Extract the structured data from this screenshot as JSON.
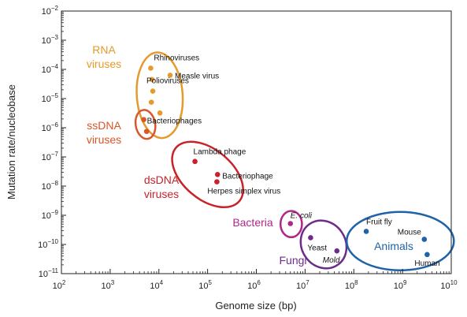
{
  "chart_data": {
    "type": "scatter",
    "title": "",
    "xlabel": "Genome size (bp)",
    "ylabel": "Mutation rate/nucleobase",
    "x_scale": "log",
    "y_scale": "log",
    "xlim": [
      100,
      10000000000
    ],
    "ylim": [
      1e-11,
      0.01
    ],
    "x_ticks": [
      {
        "base": "10",
        "exp": "2",
        "value": 100
      },
      {
        "base": "10",
        "exp": "3",
        "value": 1000
      },
      {
        "base": "10",
        "exp": "4",
        "value": 10000
      },
      {
        "base": "10",
        "exp": "5",
        "value": 100000
      },
      {
        "base": "10",
        "exp": "6",
        "value": 1000000
      },
      {
        "base": "10",
        "exp": "7",
        "value": 10000000
      },
      {
        "base": "10",
        "exp": "8",
        "value": 100000000
      },
      {
        "base": "10",
        "exp": "9",
        "value": 1000000000
      },
      {
        "base": "10",
        "exp": "10",
        "value": 10000000000
      }
    ],
    "y_ticks": [
      {
        "base": "10",
        "exp": "−2",
        "value": 0.01
      },
      {
        "base": "10",
        "exp": "−3",
        "value": 0.001
      },
      {
        "base": "10",
        "exp": "−4",
        "value": 0.0001
      },
      {
        "base": "10",
        "exp": "−5",
        "value": 1e-05
      },
      {
        "base": "10",
        "exp": "−6",
        "value": 1e-06
      },
      {
        "base": "10",
        "exp": "−7",
        "value": 1e-07
      },
      {
        "base": "10",
        "exp": "−8",
        "value": 1e-08
      },
      {
        "base": "10",
        "exp": "−9",
        "value": 1e-09
      },
      {
        "base": "10",
        "exp": "−10",
        "value": 1e-10
      },
      {
        "base": "10",
        "exp": "−11",
        "value": 1e-11
      }
    ],
    "grid": false,
    "groups": [
      {
        "name": "RNA viruses",
        "label_lines": [
          "RNA",
          "viruses"
        ],
        "color": "#e59a2b",
        "ellipse": {
          "cx": 10400,
          "cy": 1.3e-05,
          "rx_dec": 0.47,
          "ry_dec": 1.47,
          "angle": -4
        },
        "points": [
          {
            "x": 6800,
            "y": 0.00011,
            "label": "Rhinoviruses"
          },
          {
            "x": 7200,
            "y": 4.5e-05,
            "label": ""
          },
          {
            "x": 17000,
            "y": 6.3e-05,
            "label": "Measle virus"
          },
          {
            "x": 7500,
            "y": 1.8e-05,
            "label": "Polioviruses"
          },
          {
            "x": 7000,
            "y": 7.5e-06,
            "label": ""
          },
          {
            "x": 10500,
            "y": 3.2e-06,
            "label": ""
          }
        ]
      },
      {
        "name": "ssDNA viruses",
        "label_lines": [
          "ssDNA",
          "viruses"
        ],
        "color": "#d9562a",
        "ellipse": {
          "cx": 5300,
          "cy": 1.3e-06,
          "rx_dec": 0.2,
          "ry_dec": 0.5,
          "angle": -10
        },
        "points": [
          {
            "x": 4900,
            "y": 1.9e-06,
            "label": "Bacteriophages"
          },
          {
            "x": 5600,
            "y": 7.5e-07,
            "label": ""
          }
        ]
      },
      {
        "name": "dsDNA viruses",
        "label_lines": [
          "dsDNA",
          "viruses"
        ],
        "color": "#c8232b",
        "ellipse": {
          "cx": 100000,
          "cy": 2.5e-08,
          "rx_dec": 0.85,
          "ry_dec": 0.85,
          "angle": 40
        },
        "points": [
          {
            "x": 55000,
            "y": 7e-08,
            "label": "Lambda phage"
          },
          {
            "x": 160000,
            "y": 2.5e-08,
            "label": "Bacteriophage"
          },
          {
            "x": 155000,
            "y": 1.4e-08,
            "label": "Herpes simplex virus"
          }
        ]
      },
      {
        "name": "Bacteria",
        "label_lines": [
          "Bacteria"
        ],
        "color": "#b0278a",
        "ellipse": {
          "cx": 5200000,
          "cy": 5e-10,
          "rx_dec": 0.22,
          "ry_dec": 0.45,
          "angle": 0
        },
        "points": [
          {
            "x": 5000000,
            "y": 5.2e-10,
            "label": "E. coli",
            "italic": true
          }
        ]
      },
      {
        "name": "Fungi",
        "label_lines": [
          "Fungi"
        ],
        "color": "#6d2c8a",
        "ellipse": {
          "cx": 24000000,
          "cy": 1e-10,
          "rx_dec": 0.45,
          "ry_dec": 0.85,
          "angle": -35
        },
        "points": [
          {
            "x": 13000000,
            "y": 1.7e-10,
            "label": "Yeast"
          },
          {
            "x": 45000000,
            "y": 6e-11,
            "label": "Mold",
            "italic": true
          }
        ]
      },
      {
        "name": "Animals",
        "label_lines": [
          "Animals"
        ],
        "color": "#1e63a8",
        "ellipse": {
          "cx": 900000000,
          "cy": 1.3e-10,
          "rx_dec": 1.1,
          "ry_dec": 1.0,
          "angle": 0
        },
        "points": [
          {
            "x": 180000000,
            "y": 2.8e-10,
            "label": "Fruit fly"
          },
          {
            "x": 2800000000,
            "y": 1.5e-10,
            "label": "Mouse"
          },
          {
            "x": 3200000000,
            "y": 4.5e-11,
            "label": "Human"
          }
        ]
      }
    ]
  }
}
